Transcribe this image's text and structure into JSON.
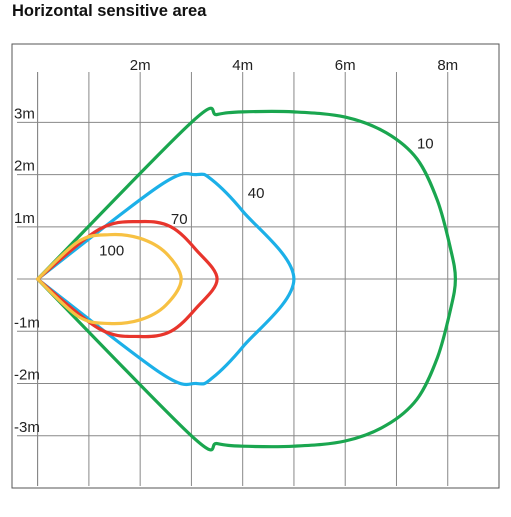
{
  "chart_data": {
    "type": "line",
    "title": "Horizontal sensitive area",
    "xlabel": "",
    "ylabel": "",
    "xlim": [
      -0.5,
      9
    ],
    "ylim": [
      -4,
      4.5
    ],
    "grid": true,
    "x_ticks": [
      {
        "value": 2,
        "label": "2m"
      },
      {
        "value": 4,
        "label": "4m"
      },
      {
        "value": 6,
        "label": "6m"
      },
      {
        "value": 8,
        "label": "8m"
      }
    ],
    "y_ticks": [
      {
        "value": 3,
        "label": "3m"
      },
      {
        "value": 2,
        "label": "2m"
      },
      {
        "value": 1,
        "label": "1m"
      },
      {
        "value": -1,
        "label": "-1m"
      },
      {
        "value": -2,
        "label": "-2m"
      },
      {
        "value": -3,
        "label": "-3m"
      }
    ],
    "series": [
      {
        "name": "10",
        "color": "#1aa64f",
        "label_at": [
          7.4,
          2.5
        ],
        "points": [
          [
            0,
            0
          ],
          [
            3,
            3
          ],
          [
            3.5,
            3.15
          ],
          [
            4,
            3.2
          ],
          [
            5,
            3.2
          ],
          [
            6,
            3.1
          ],
          [
            6.8,
            2.8
          ],
          [
            7.4,
            2.3
          ],
          [
            7.8,
            1.5
          ],
          [
            8.05,
            0.6
          ],
          [
            8.15,
            0
          ],
          [
            8.05,
            -0.6
          ],
          [
            7.8,
            -1.5
          ],
          [
            7.4,
            -2.3
          ],
          [
            6.8,
            -2.8
          ],
          [
            6,
            -3.1
          ],
          [
            5,
            -3.2
          ],
          [
            4,
            -3.2
          ],
          [
            3.5,
            -3.15
          ],
          [
            3,
            -3
          ],
          [
            0,
            0
          ]
        ]
      },
      {
        "name": "40",
        "color": "#1cb0e8",
        "label_at": [
          4.1,
          1.55
        ],
        "points": [
          [
            0,
            0
          ],
          [
            2.4,
            1.8
          ],
          [
            3.1,
            2
          ],
          [
            3.4,
            1.9
          ],
          [
            4,
            1.3
          ],
          [
            5,
            0
          ],
          [
            4,
            -1.3
          ],
          [
            3.4,
            -1.9
          ],
          [
            3.1,
            -2
          ],
          [
            2.4,
            -1.8
          ],
          [
            0,
            0
          ]
        ]
      },
      {
        "name": "70",
        "color": "#e8352c",
        "label_at": [
          2.6,
          1.05
        ],
        "points": [
          [
            0,
            0
          ],
          [
            1.2,
            0.95
          ],
          [
            2,
            1.1
          ],
          [
            2.6,
            1
          ],
          [
            3.1,
            0.55
          ],
          [
            3.5,
            0
          ],
          [
            3.1,
            -0.55
          ],
          [
            2.6,
            -1
          ],
          [
            2,
            -1.1
          ],
          [
            1.2,
            -0.95
          ],
          [
            0,
            0
          ]
        ]
      },
      {
        "name": "100",
        "color": "#f7c143",
        "label_at": [
          1.2,
          0.45
        ],
        "points": [
          [
            0,
            0
          ],
          [
            0.8,
            0.72
          ],
          [
            1.4,
            0.85
          ],
          [
            2,
            0.78
          ],
          [
            2.5,
            0.5
          ],
          [
            2.8,
            0
          ],
          [
            2.5,
            -0.5
          ],
          [
            2,
            -0.78
          ],
          [
            1.4,
            -0.85
          ],
          [
            0.8,
            -0.72
          ],
          [
            0,
            0
          ]
        ]
      }
    ]
  }
}
